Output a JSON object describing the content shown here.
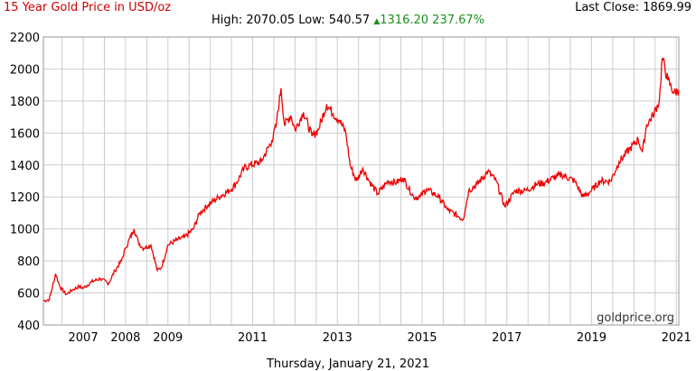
{
  "header": {
    "title": "15 Year Gold Price in USD/oz",
    "last_close_label": "Last Close:",
    "last_close_value": "1869.99",
    "high_label": "High:",
    "high_value": "2070.05",
    "low_label": "Low:",
    "low_value": "540.57",
    "change_value": "1316.20",
    "change_pct": "237.67%",
    "up_icon": "triangle-up-icon"
  },
  "footer": {
    "date": "Thursday, January 21, 2021"
  },
  "watermark": "goldprice.org",
  "colors": {
    "line": "#ee0000",
    "grid": "#cccccc",
    "title": "#cc0000",
    "change": "#1a8f1a"
  },
  "chart_data": {
    "type": "line",
    "title": "15 Year Gold Price in USD/oz",
    "xlabel": "",
    "ylabel": "",
    "xlim": [
      2006.06,
      2021.06
    ],
    "ylim": [
      400,
      2200
    ],
    "y_ticks": [
      400,
      600,
      800,
      1000,
      1200,
      1400,
      1600,
      1800,
      2000,
      2200
    ],
    "x_ticks": [
      2007,
      2008,
      2009,
      2011,
      2013,
      2015,
      2017,
      2019,
      2021
    ],
    "grid": true,
    "series": [
      {
        "values_note": "",
        "x": [
          2006.06,
          2006.2,
          2006.35,
          2006.45,
          2006.6,
          2006.75,
          2006.9,
          2007.0,
          2007.2,
          2007.4,
          2007.6,
          2007.75,
          2007.9,
          2008.0,
          2008.2,
          2008.3,
          2008.4,
          2008.6,
          2008.75,
          2008.85,
          2009.0,
          2009.2,
          2009.4,
          2009.6,
          2009.75,
          2009.95,
          2010.2,
          2010.45,
          2010.6,
          2010.8,
          2010.95,
          2011.2,
          2011.45,
          2011.55,
          2011.67,
          2011.75,
          2011.9,
          2012.0,
          2012.2,
          2012.4,
          2012.55,
          2012.75,
          2012.9,
          2013.05,
          2013.2,
          2013.3,
          2013.45,
          2013.6,
          2013.75,
          2013.95,
          2014.2,
          2014.4,
          2014.55,
          2014.8,
          2014.95,
          2015.1,
          2015.4,
          2015.6,
          2015.85,
          2015.97,
          2016.1,
          2016.3,
          2016.55,
          2016.75,
          2016.95,
          2017.2,
          2017.45,
          2017.7,
          2017.9,
          2018.1,
          2018.3,
          2018.6,
          2018.8,
          2019.0,
          2019.2,
          2019.45,
          2019.65,
          2019.9,
          2020.1,
          2020.2,
          2020.3,
          2020.45,
          2020.6,
          2020.67,
          2020.8,
          2020.95,
          2021.06
        ],
        "y": [
          550,
          560,
          720,
          640,
          590,
          620,
          640,
          630,
          670,
          690,
          660,
          740,
          800,
          880,
          1000,
          920,
          880,
          900,
          740,
          760,
          900,
          930,
          950,
          1000,
          1100,
          1150,
          1200,
          1240,
          1280,
          1380,
          1400,
          1420,
          1550,
          1640,
          1880,
          1650,
          1710,
          1620,
          1730,
          1580,
          1620,
          1780,
          1720,
          1680,
          1600,
          1400,
          1300,
          1380,
          1300,
          1220,
          1300,
          1290,
          1320,
          1200,
          1200,
          1250,
          1200,
          1120,
          1080,
          1060,
          1240,
          1280,
          1360,
          1300,
          1140,
          1240,
          1240,
          1280,
          1290,
          1320,
          1340,
          1300,
          1200,
          1240,
          1300,
          1300,
          1420,
          1500,
          1560,
          1480,
          1650,
          1710,
          1800,
          2070,
          1930,
          1850,
          1870
        ]
      }
    ]
  }
}
